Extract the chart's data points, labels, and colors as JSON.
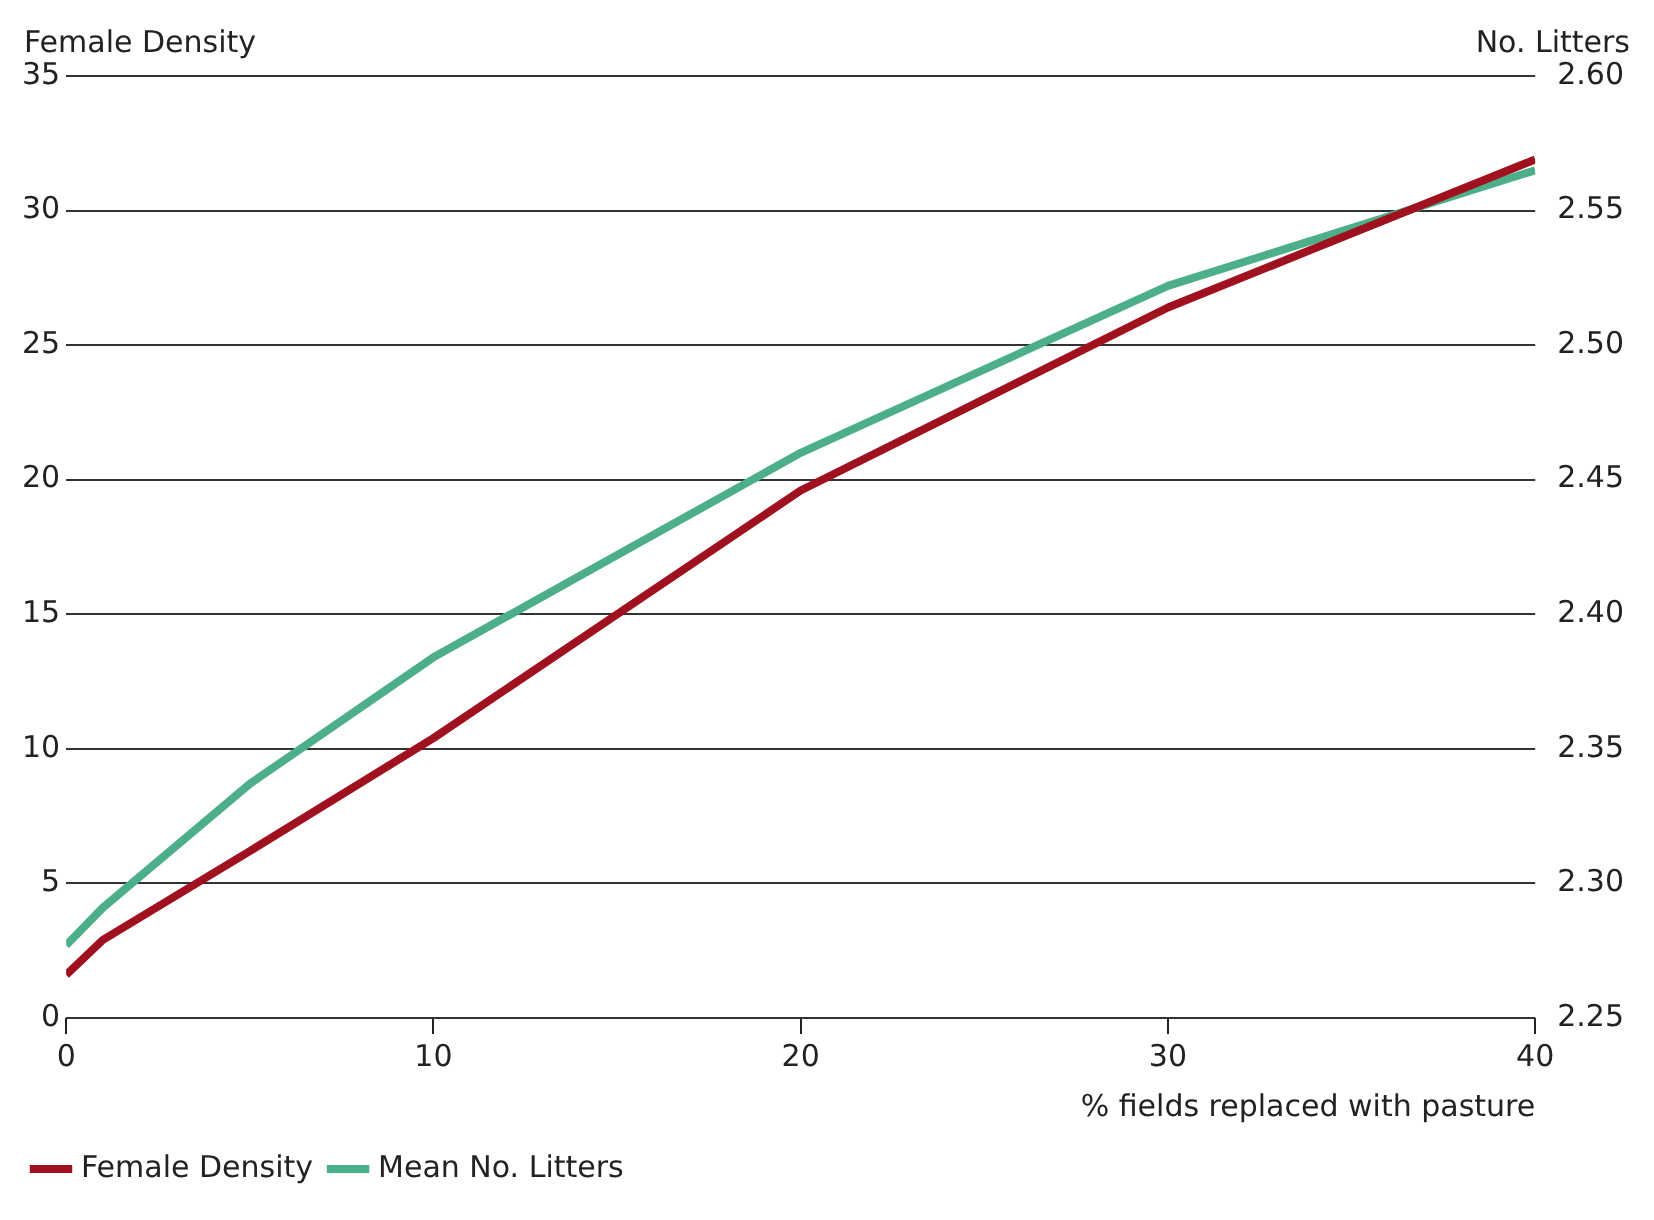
{
  "chart_data": {
    "type": "line",
    "ylabel": "Female Density",
    "y2label": "No. Litters",
    "xlabel": "% fields replaced with pasture",
    "x": [
      0,
      1,
      5,
      10,
      20,
      30,
      40
    ],
    "series": [
      {
        "name": "Female Density",
        "color": "#a0111f",
        "values": [
          1.6,
          2.9,
          6.2,
          10.4,
          19.6,
          26.4,
          31.9
        ]
      },
      {
        "name": "Mean No. Litters",
        "color": "#4caf8a",
        "axis": "y2",
        "values": [
          2.277,
          2.291,
          2.337,
          2.384,
          2.46,
          2.522,
          2.565
        ]
      }
    ],
    "xlim": [
      0,
      40
    ],
    "xticks": [
      0,
      10,
      20,
      30,
      40
    ],
    "ylim": [
      0,
      35
    ],
    "yticks": [
      0,
      5,
      10,
      15,
      20,
      25,
      30,
      35
    ],
    "y2lim": [
      2.25,
      2.6
    ],
    "y2ticks": [
      {
        "value": 2.25,
        "label": "2.25"
      },
      {
        "value": 2.3,
        "label": "2.30"
      },
      {
        "value": 2.35,
        "label": "2.35"
      },
      {
        "value": 2.4,
        "label": "2.40"
      },
      {
        "value": 2.45,
        "label": "2.45"
      },
      {
        "value": 2.5,
        "label": "2.50"
      },
      {
        "value": 2.55,
        "label": "2.55"
      },
      {
        "value": 2.6,
        "label": "2.60"
      }
    ],
    "grid": "y",
    "legend": "bottom left",
    "marker": "none",
    "line_style": "solid"
  }
}
